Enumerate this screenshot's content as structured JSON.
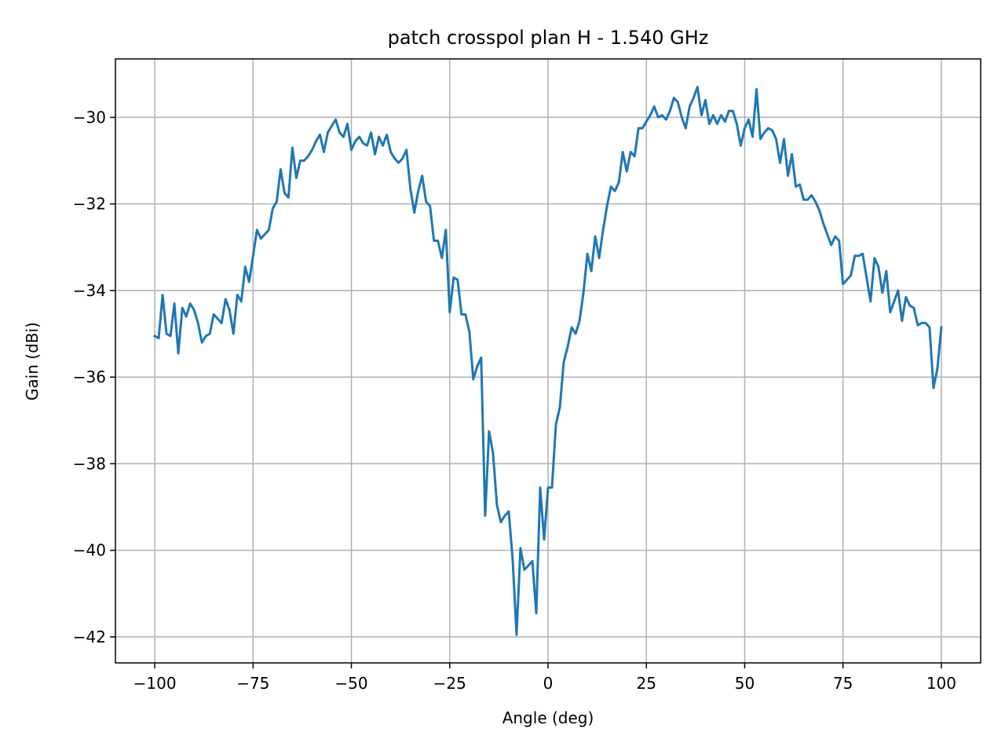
{
  "chart_data": {
    "type": "line",
    "title": "patch crosspol plan H - 1.540 GHz",
    "xlabel": "Angle (deg)",
    "ylabel": "Gain (dBi)",
    "xlim": [
      -110,
      110
    ],
    "ylim": [
      -42.6,
      -28.65
    ],
    "xticks": [
      -100,
      -75,
      -50,
      -25,
      0,
      25,
      50,
      75,
      100
    ],
    "yticks": [
      -42,
      -40,
      -38,
      -36,
      -34,
      -32,
      -30
    ],
    "xtick_labels": [
      "−100",
      "−75",
      "−50",
      "−25",
      "0",
      "25",
      "50",
      "75",
      "100"
    ],
    "ytick_labels": [
      "−42",
      "−40",
      "−38",
      "−36",
      "−34",
      "−32",
      "−30"
    ],
    "grid": true,
    "legend": "none",
    "series": [
      {
        "color": "#1f77b4",
        "x": [
          -100,
          -99,
          -98,
          -97,
          -96,
          -95,
          -94,
          -93,
          -92,
          -91,
          -90,
          -89,
          -88,
          -87,
          -86,
          -85,
          -84,
          -83,
          -82,
          -81,
          -80,
          -79,
          -78,
          -77,
          -76,
          -75,
          -74,
          -73,
          -72,
          -71,
          -70,
          -69,
          -68,
          -67,
          -66,
          -65,
          -64,
          -63,
          -62,
          -61,
          -60,
          -59,
          -58,
          -57,
          -56,
          -55,
          -54,
          -53,
          -52,
          -51,
          -50,
          -49,
          -48,
          -47,
          -46,
          -45,
          -44,
          -43,
          -42,
          -41,
          -40,
          -39,
          -38,
          -37,
          -36,
          -35,
          -34,
          -33,
          -32,
          -31,
          -30,
          -29,
          -28,
          -27,
          -26,
          -25,
          -24,
          -23,
          -22,
          -21,
          -20,
          -19,
          -18,
          -17,
          -16,
          -15,
          -14,
          -13,
          -12,
          -11,
          -10,
          -9,
          -8,
          -7,
          -6,
          -5,
          -4,
          -3,
          -2,
          -1,
          0,
          1,
          2,
          3,
          4,
          5,
          6,
          7,
          8,
          9,
          10,
          11,
          12,
          13,
          14,
          15,
          16,
          17,
          18,
          19,
          20,
          21,
          22,
          23,
          24,
          25,
          26,
          27,
          28,
          29,
          30,
          31,
          32,
          33,
          34,
          35,
          36,
          37,
          38,
          39,
          40,
          41,
          42,
          43,
          44,
          45,
          46,
          47,
          48,
          49,
          50,
          51,
          52,
          53,
          54,
          55,
          56,
          57,
          58,
          59,
          60,
          61,
          62,
          63,
          64,
          65,
          66,
          67,
          68,
          69,
          70,
          71,
          72,
          73,
          74,
          75,
          76,
          77,
          78,
          79,
          80,
          81,
          82,
          83,
          84,
          85,
          86,
          87,
          88,
          89,
          90,
          91,
          92,
          93,
          94,
          95,
          96,
          97,
          98,
          99,
          100
        ],
        "y": [
          -35.05,
          -35.1,
          -34.1,
          -35.0,
          -35.05,
          -34.3,
          -35.45,
          -34.4,
          -34.6,
          -34.3,
          -34.45,
          -34.75,
          -35.2,
          -35.05,
          -35.0,
          -34.55,
          -34.65,
          -34.75,
          -34.2,
          -34.45,
          -35.0,
          -34.1,
          -34.25,
          -33.45,
          -33.8,
          -33.2,
          -32.6,
          -32.8,
          -32.7,
          -32.6,
          -32.1,
          -31.95,
          -31.2,
          -31.75,
          -31.85,
          -30.7,
          -31.4,
          -31.0,
          -31.0,
          -30.9,
          -30.75,
          -30.55,
          -30.4,
          -30.8,
          -30.35,
          -30.2,
          -30.05,
          -30.35,
          -30.45,
          -30.15,
          -30.75,
          -30.55,
          -30.45,
          -30.6,
          -30.65,
          -30.35,
          -30.85,
          -30.45,
          -30.65,
          -30.4,
          -30.8,
          -30.95,
          -31.05,
          -30.95,
          -30.75,
          -31.65,
          -32.2,
          -31.7,
          -31.35,
          -31.95,
          -32.05,
          -32.85,
          -32.85,
          -33.25,
          -32.6,
          -34.5,
          -33.7,
          -33.75,
          -34.55,
          -34.55,
          -34.95,
          -36.05,
          -35.75,
          -35.55,
          -39.2,
          -37.25,
          -37.75,
          -38.95,
          -39.35,
          -39.2,
          -39.1,
          -40.2,
          -41.95,
          -39.95,
          -40.45,
          -40.35,
          -40.25,
          -41.45,
          -38.55,
          -39.75,
          -38.55,
          -38.55,
          -37.1,
          -36.7,
          -35.65,
          -35.3,
          -34.85,
          -35.0,
          -34.7,
          -34.05,
          -33.15,
          -33.55,
          -32.75,
          -33.25,
          -32.6,
          -32.05,
          -31.6,
          -31.7,
          -31.5,
          -30.8,
          -31.25,
          -30.8,
          -30.9,
          -30.25,
          -30.25,
          -30.1,
          -29.95,
          -29.75,
          -30.0,
          -29.95,
          -30.05,
          -29.85,
          -29.55,
          -29.65,
          -30.0,
          -30.25,
          -29.75,
          -29.55,
          -29.3,
          -29.95,
          -29.6,
          -30.15,
          -29.95,
          -30.15,
          -29.95,
          -30.1,
          -29.85,
          -29.85,
          -30.15,
          -30.65,
          -30.25,
          -30.05,
          -30.45,
          -29.35,
          -30.5,
          -30.35,
          -30.25,
          -30.3,
          -30.5,
          -31.05,
          -30.5,
          -31.35,
          -30.85,
          -31.6,
          -31.55,
          -31.9,
          -31.9,
          -31.8,
          -31.95,
          -32.15,
          -32.45,
          -32.7,
          -32.95,
          -32.75,
          -32.85,
          -33.85,
          -33.75,
          -33.65,
          -33.2,
          -33.2,
          -33.15,
          -33.7,
          -34.25,
          -33.25,
          -33.45,
          -34.05,
          -33.55,
          -34.5,
          -34.25,
          -34.0,
          -34.7,
          -34.15,
          -34.35,
          -34.4,
          -34.8,
          -34.75,
          -34.75,
          -34.85,
          -36.25,
          -35.8,
          -34.85
        ]
      }
    ]
  }
}
